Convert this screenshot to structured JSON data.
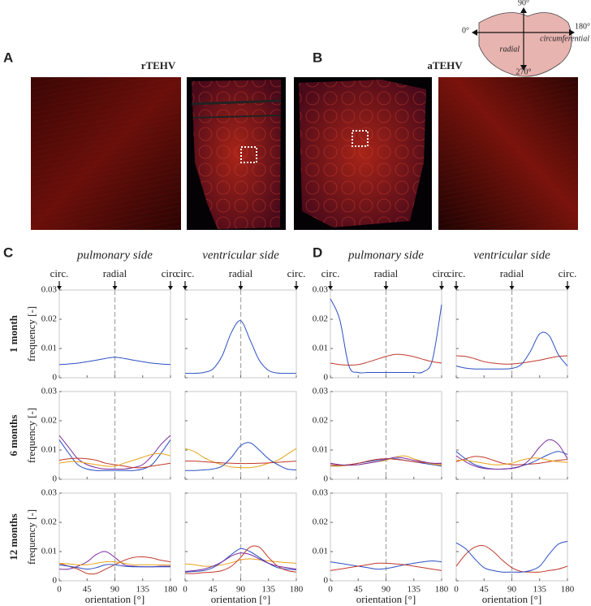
{
  "panel_labels": [
    "A",
    "B",
    "C",
    "D"
  ],
  "image_titles": [
    "rTEHV",
    "aTEHV"
  ],
  "schematic": {
    "angles": [
      "90°",
      "0°",
      "180°",
      "270°"
    ],
    "labels": [
      "radial",
      "circumferential"
    ]
  },
  "column_titles": [
    "pulmonary side",
    "ventricular side",
    "pulmonary side",
    "ventricular side"
  ],
  "direction_labels": [
    "circ.",
    "radial",
    "circ."
  ],
  "row_labels": [
    "1 month",
    "6 months",
    "12 months"
  ],
  "y_axis_label": "frequency [-]",
  "x_axis_label": "orientation [°]",
  "chart_data": [
    {
      "type": "line",
      "xlim": [
        0,
        180
      ],
      "ylim": [
        0,
        0.03
      ],
      "xticks": [
        0,
        45,
        90,
        135,
        180
      ],
      "yticks": [
        0,
        0.01,
        0.02,
        0.03
      ],
      "reference_line": 90,
      "x": [
        0,
        15,
        30,
        45,
        60,
        75,
        90,
        105,
        120,
        135,
        150,
        165,
        180
      ],
      "series": [
        {
          "color": "#2b4fc4",
          "values": [
            0.0045,
            0.0047,
            0.005,
            0.0055,
            0.006,
            0.0066,
            0.007,
            0.0066,
            0.006,
            0.0055,
            0.005,
            0.0047,
            0.0045
          ]
        }
      ]
    },
    {
      "type": "line",
      "xlim": [
        0,
        180
      ],
      "ylim": [
        0,
        0.03
      ],
      "xticks": [
        0,
        45,
        90,
        135,
        180
      ],
      "yticks": [
        0,
        0.01,
        0.02,
        0.03
      ],
      "reference_line": 90,
      "x": [
        0,
        15,
        30,
        45,
        60,
        75,
        90,
        105,
        120,
        135,
        150,
        165,
        180
      ],
      "series": [
        {
          "color": "#2b4fc4",
          "values": [
            0.0015,
            0.0015,
            0.0018,
            0.003,
            0.0075,
            0.0155,
            0.0195,
            0.013,
            0.006,
            0.0025,
            0.0016,
            0.0015,
            0.0015
          ]
        }
      ]
    },
    {
      "type": "line",
      "xlim": [
        0,
        180
      ],
      "ylim": [
        0,
        0.03
      ],
      "xticks": [
        0,
        45,
        90,
        135,
        180
      ],
      "yticks": [
        0,
        0.01,
        0.02,
        0.03
      ],
      "reference_line": 90,
      "x": [
        0,
        15,
        30,
        45,
        60,
        75,
        90,
        105,
        120,
        135,
        150,
        165,
        180
      ],
      "series": [
        {
          "color": "#2b4fc4",
          "values": [
            0.027,
            0.02,
            0.004,
            0.0018,
            0.0018,
            0.0018,
            0.0018,
            0.0018,
            0.0018,
            0.0018,
            0.002,
            0.006,
            0.025
          ]
        },
        {
          "color": "#c0392b",
          "values": [
            0.005,
            0.0045,
            0.0043,
            0.0045,
            0.0053,
            0.0063,
            0.0073,
            0.008,
            0.0078,
            0.0072,
            0.0063,
            0.0055,
            0.005
          ]
        }
      ]
    },
    {
      "type": "line",
      "xlim": [
        0,
        180
      ],
      "ylim": [
        0,
        0.03
      ],
      "xticks": [
        0,
        45,
        90,
        135,
        180
      ],
      "yticks": [
        0,
        0.01,
        0.02,
        0.03
      ],
      "reference_line": 90,
      "x": [
        0,
        15,
        30,
        45,
        60,
        75,
        90,
        105,
        120,
        135,
        150,
        165,
        180
      ],
      "series": [
        {
          "color": "#c0392b",
          "values": [
            0.0075,
            0.0073,
            0.0065,
            0.0055,
            0.005,
            0.0047,
            0.0047,
            0.005,
            0.0055,
            0.006,
            0.0067,
            0.0073,
            0.0075
          ]
        },
        {
          "color": "#2b4fc4",
          "values": [
            0.004,
            0.0033,
            0.003,
            0.003,
            0.003,
            0.003,
            0.0032,
            0.0045,
            0.009,
            0.015,
            0.0145,
            0.008,
            0.004
          ]
        }
      ]
    },
    {
      "type": "line",
      "xlim": [
        0,
        180
      ],
      "ylim": [
        0,
        0.03
      ],
      "xticks": [
        0,
        45,
        90,
        135,
        180
      ],
      "yticks": [
        0,
        0.01,
        0.02,
        0.03
      ],
      "reference_line": 90,
      "x": [
        0,
        15,
        30,
        45,
        60,
        75,
        90,
        105,
        120,
        135,
        150,
        165,
        180
      ],
      "series": [
        {
          "color": "#2b4fc4",
          "values": [
            0.0135,
            0.009,
            0.005,
            0.0035,
            0.003,
            0.003,
            0.003,
            0.003,
            0.003,
            0.0035,
            0.005,
            0.009,
            0.0135
          ]
        },
        {
          "color": "#7b2d9e",
          "values": [
            0.015,
            0.011,
            0.007,
            0.005,
            0.004,
            0.0035,
            0.0035,
            0.0035,
            0.004,
            0.005,
            0.008,
            0.012,
            0.015
          ]
        },
        {
          "color": "#c0392b",
          "values": [
            0.0065,
            0.007,
            0.0072,
            0.007,
            0.0065,
            0.0055,
            0.005,
            0.0045,
            0.004,
            0.004,
            0.0045,
            0.005,
            0.0055
          ]
        },
        {
          "color": "#e8a317",
          "values": [
            0.0055,
            0.006,
            0.006,
            0.0055,
            0.005,
            0.0045,
            0.0045,
            0.0055,
            0.0065,
            0.0075,
            0.0085,
            0.0088,
            0.008
          ]
        }
      ]
    },
    {
      "type": "line",
      "xlim": [
        0,
        180
      ],
      "ylim": [
        0,
        0.03
      ],
      "xticks": [
        0,
        45,
        90,
        135,
        180
      ],
      "yticks": [
        0,
        0.01,
        0.02,
        0.03
      ],
      "reference_line": 90,
      "x": [
        0,
        15,
        30,
        45,
        60,
        75,
        90,
        105,
        120,
        135,
        150,
        165,
        180
      ],
      "series": [
        {
          "color": "#e8a317",
          "values": [
            0.0105,
            0.0095,
            0.0075,
            0.006,
            0.005,
            0.0042,
            0.004,
            0.004,
            0.0045,
            0.0055,
            0.0065,
            0.0085,
            0.0105
          ]
        },
        {
          "color": "#c0392b",
          "values": [
            0.0062,
            0.0062,
            0.006,
            0.0058,
            0.0056,
            0.0055,
            0.0054,
            0.0054,
            0.0055,
            0.0056,
            0.0058,
            0.006,
            0.0062
          ]
        },
        {
          "color": "#2b4fc4",
          "values": [
            0.003,
            0.003,
            0.0032,
            0.0035,
            0.0045,
            0.0075,
            0.0115,
            0.0125,
            0.01,
            0.007,
            0.005,
            0.0035,
            0.0032
          ]
        }
      ]
    },
    {
      "type": "line",
      "xlim": [
        0,
        180
      ],
      "ylim": [
        0,
        0.03
      ],
      "xticks": [
        0,
        45,
        90,
        135,
        180
      ],
      "yticks": [
        0,
        0.01,
        0.02,
        0.03
      ],
      "reference_line": 90,
      "x": [
        0,
        15,
        30,
        45,
        60,
        75,
        90,
        105,
        120,
        135,
        150,
        165,
        180
      ],
      "series": [
        {
          "color": "#2b4fc4",
          "values": [
            0.0045,
            0.0047,
            0.005,
            0.0055,
            0.006,
            0.0065,
            0.007,
            0.007,
            0.0065,
            0.006,
            0.0055,
            0.005,
            0.0045
          ]
        },
        {
          "color": "#c0392b",
          "values": [
            0.005,
            0.0048,
            0.005,
            0.0055,
            0.0062,
            0.0068,
            0.007,
            0.0068,
            0.0065,
            0.006,
            0.0057,
            0.0055,
            0.0052
          ]
        },
        {
          "color": "#e8a317",
          "values": [
            0.0045,
            0.0045,
            0.0048,
            0.005,
            0.0055,
            0.006,
            0.0065,
            0.0075,
            0.008,
            0.007,
            0.006,
            0.0052,
            0.0048
          ]
        },
        {
          "color": "#7b2d9e",
          "values": [
            0.0055,
            0.005,
            0.0048,
            0.005,
            0.0055,
            0.006,
            0.0068,
            0.0075,
            0.0072,
            0.0065,
            0.006,
            0.0055,
            0.0055
          ]
        }
      ]
    },
    {
      "type": "line",
      "xlim": [
        0,
        180
      ],
      "ylim": [
        0,
        0.03
      ],
      "xticks": [
        0,
        45,
        90,
        135,
        180
      ],
      "yticks": [
        0,
        0.01,
        0.02,
        0.03
      ],
      "reference_line": 90,
      "x": [
        0,
        15,
        30,
        45,
        60,
        75,
        90,
        105,
        120,
        135,
        150,
        165,
        180
      ],
      "series": [
        {
          "color": "#c0392b",
          "values": [
            0.006,
            0.007,
            0.0078,
            0.0075,
            0.0065,
            0.0055,
            0.005,
            0.005,
            0.0052,
            0.0055,
            0.006,
            0.0065,
            0.0068
          ]
        },
        {
          "color": "#2b4fc4",
          "values": [
            0.0095,
            0.007,
            0.005,
            0.004,
            0.0035,
            0.0035,
            0.0038,
            0.0045,
            0.0055,
            0.007,
            0.0085,
            0.0095,
            0.0085
          ]
        },
        {
          "color": "#7b2d9e",
          "values": [
            0.008,
            0.006,
            0.0045,
            0.0037,
            0.0035,
            0.0035,
            0.0037,
            0.0045,
            0.007,
            0.011,
            0.0135,
            0.012,
            0.007
          ]
        },
        {
          "color": "#e8a317",
          "values": [
            0.0065,
            0.0065,
            0.006,
            0.0055,
            0.005,
            0.005,
            0.0055,
            0.0065,
            0.0072,
            0.0072,
            0.0065,
            0.006,
            0.0058
          ]
        }
      ]
    },
    {
      "type": "line",
      "xlim": [
        0,
        180
      ],
      "ylim": [
        0,
        0.03
      ],
      "xticks": [
        0,
        45,
        90,
        135,
        180
      ],
      "yticks": [
        0,
        0.01,
        0.02,
        0.03
      ],
      "reference_line": 90,
      "x": [
        0,
        15,
        30,
        45,
        60,
        75,
        90,
        105,
        120,
        135,
        150,
        165,
        180
      ],
      "series": [
        {
          "color": "#7b2d9e",
          "values": [
            0.004,
            0.004,
            0.005,
            0.0065,
            0.009,
            0.01,
            0.008,
            0.0055,
            0.005,
            0.0048,
            0.0048,
            0.005,
            0.005
          ]
        },
        {
          "color": "#c0392b",
          "values": [
            0.006,
            0.005,
            0.004,
            0.0025,
            0.0025,
            0.004,
            0.0055,
            0.007,
            0.008,
            0.0082,
            0.0078,
            0.007,
            0.0065
          ]
        },
        {
          "color": "#e8a317",
          "values": [
            0.006,
            0.0058,
            0.0055,
            0.0055,
            0.006,
            0.0065,
            0.0065,
            0.006,
            0.0055,
            0.0055,
            0.0055,
            0.0055,
            0.0055
          ]
        },
        {
          "color": "#2b4fc4",
          "values": [
            0.0055,
            0.005,
            0.0045,
            0.004,
            0.0045,
            0.0055,
            0.0055,
            0.005,
            0.0048,
            0.0048,
            0.0048,
            0.0048,
            0.0048
          ]
        }
      ]
    },
    {
      "type": "line",
      "xlim": [
        0,
        180
      ],
      "ylim": [
        0,
        0.03
      ],
      "xticks": [
        0,
        45,
        90,
        135,
        180
      ],
      "yticks": [
        0,
        0.01,
        0.02,
        0.03
      ],
      "reference_line": 90,
      "x": [
        0,
        15,
        30,
        45,
        60,
        75,
        90,
        105,
        120,
        135,
        150,
        165,
        180
      ],
      "series": [
        {
          "color": "#e8a317",
          "values": [
            0.0058,
            0.0055,
            0.005,
            0.005,
            0.0055,
            0.0062,
            0.0072,
            0.0075,
            0.0072,
            0.0068,
            0.0065,
            0.0062,
            0.006
          ]
        },
        {
          "color": "#2b4fc4",
          "values": [
            0.003,
            0.0032,
            0.0035,
            0.0045,
            0.0065,
            0.009,
            0.011,
            0.01,
            0.008,
            0.006,
            0.0045,
            0.004,
            0.0038
          ]
        },
        {
          "color": "#c0392b",
          "values": [
            0.0025,
            0.0025,
            0.0028,
            0.003,
            0.0035,
            0.005,
            0.008,
            0.0115,
            0.0115,
            0.008,
            0.005,
            0.0035,
            0.003
          ]
        },
        {
          "color": "#7b2d9e",
          "values": [
            0.0032,
            0.0035,
            0.004,
            0.005,
            0.0065,
            0.0085,
            0.0095,
            0.009,
            0.0075,
            0.006,
            0.005,
            0.0045,
            0.004
          ]
        }
      ]
    },
    {
      "type": "line",
      "xlim": [
        0,
        180
      ],
      "ylim": [
        0,
        0.03
      ],
      "xticks": [
        0,
        45,
        90,
        135,
        180
      ],
      "yticks": [
        0,
        0.01,
        0.02,
        0.03
      ],
      "reference_line": 90,
      "x": [
        0,
        15,
        30,
        45,
        60,
        75,
        90,
        105,
        120,
        135,
        150,
        165,
        180
      ],
      "series": [
        {
          "color": "#2b4fc4",
          "values": [
            0.0065,
            0.006,
            0.0055,
            0.005,
            0.0045,
            0.004,
            0.0042,
            0.0048,
            0.0055,
            0.006,
            0.0065,
            0.0068,
            0.0065
          ]
        },
        {
          "color": "#c0392b",
          "values": [
            0.0035,
            0.004,
            0.0045,
            0.005,
            0.0055,
            0.006,
            0.006,
            0.0058,
            0.0055,
            0.005,
            0.0045,
            0.004,
            0.0035
          ]
        }
      ]
    },
    {
      "type": "line",
      "xlim": [
        0,
        180
      ],
      "ylim": [
        0,
        0.03
      ],
      "xticks": [
        0,
        45,
        90,
        135,
        180
      ],
      "yticks": [
        0,
        0.01,
        0.02,
        0.03
      ],
      "reference_line": 90,
      "x": [
        0,
        15,
        30,
        45,
        60,
        75,
        90,
        105,
        120,
        135,
        150,
        165,
        180
      ],
      "series": [
        {
          "color": "#c0392b",
          "values": [
            0.005,
            0.009,
            0.0115,
            0.012,
            0.01,
            0.007,
            0.0045,
            0.0032,
            0.003,
            0.003,
            0.0035,
            0.004,
            0.005
          ]
        },
        {
          "color": "#2b4fc4",
          "values": [
            0.013,
            0.011,
            0.0075,
            0.0045,
            0.0035,
            0.003,
            0.003,
            0.003,
            0.0035,
            0.005,
            0.009,
            0.0125,
            0.0135
          ]
        }
      ]
    }
  ]
}
